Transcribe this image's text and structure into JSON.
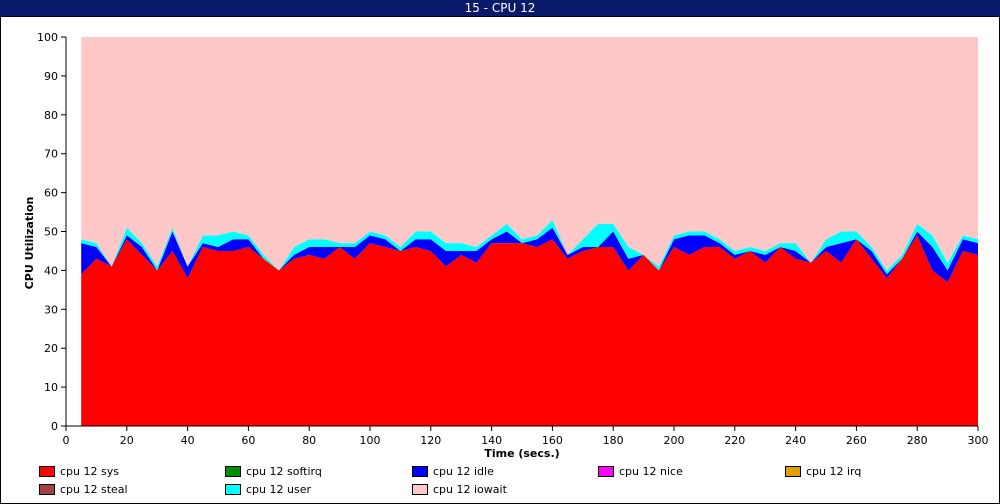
{
  "window": {
    "title": "15 - CPU 12"
  },
  "chart_data": {
    "type": "area",
    "stacked": true,
    "xlabel": "Time (secs.)",
    "ylabel": "CPU Utilization",
    "xlim": [
      0,
      300
    ],
    "ylim": [
      0,
      100
    ],
    "x_ticks": [
      0,
      20,
      40,
      60,
      80,
      100,
      120,
      140,
      160,
      180,
      200,
      220,
      240,
      260,
      280,
      300
    ],
    "y_ticks": [
      0,
      10,
      20,
      30,
      40,
      50,
      60,
      70,
      80,
      90,
      100
    ],
    "x": [
      5,
      10,
      15,
      20,
      25,
      30,
      35,
      40,
      45,
      50,
      55,
      60,
      65,
      70,
      75,
      80,
      85,
      90,
      95,
      100,
      105,
      110,
      115,
      120,
      125,
      130,
      135,
      140,
      145,
      150,
      155,
      160,
      165,
      170,
      175,
      180,
      185,
      190,
      195,
      200,
      205,
      210,
      215,
      220,
      225,
      230,
      235,
      240,
      245,
      250,
      255,
      260,
      265,
      270,
      275,
      280,
      285,
      290,
      295,
      300
    ],
    "series": [
      {
        "name": "cpu 12 sys",
        "color": "#ff0000",
        "values": [
          39,
          43,
          41,
          48,
          44,
          40,
          45,
          38,
          46,
          45,
          45,
          46,
          43,
          40,
          43,
          44,
          43,
          46,
          43,
          47,
          46,
          45,
          46,
          45,
          41,
          44,
          42,
          47,
          47,
          47,
          46,
          48,
          43,
          45,
          46,
          46,
          40,
          44,
          40,
          46,
          44,
          46,
          46,
          43,
          45,
          42,
          46,
          43,
          42,
          45,
          42,
          48,
          43,
          38,
          43,
          49,
          40,
          37,
          45,
          44
        ],
        "display": [
          null,
          null,
          null,
          null,
          null,
          null,
          null,
          null,
          null,
          null,
          null,
          null,
          null,
          null,
          null,
          null,
          null,
          null,
          null,
          null,
          null,
          null,
          null,
          null,
          null,
          null,
          null,
          null,
          null,
          null,
          null,
          null,
          null,
          null,
          null,
          null,
          null,
          null,
          null,
          null,
          null,
          null,
          null,
          null,
          null,
          null,
          null,
          null,
          null,
          null,
          null,
          null,
          null,
          null,
          null,
          null,
          null,
          null,
          null,
          null
        ]
      },
      {
        "name": "cpu 12 softirq",
        "color": "#009000",
        "values": [
          0,
          0,
          0,
          0,
          0,
          0,
          0,
          0,
          0,
          0,
          0,
          0,
          0,
          0,
          0,
          0,
          0,
          0,
          0,
          0,
          0,
          0,
          0,
          0,
          0,
          0,
          0,
          0,
          0,
          0,
          0,
          0,
          0,
          0,
          0,
          0,
          0,
          0,
          0,
          0,
          0,
          0,
          0,
          0,
          0,
          0,
          0,
          0,
          0,
          0,
          0,
          0,
          0,
          0,
          0,
          0,
          0,
          0,
          0,
          0
        ]
      },
      {
        "name": "cpu 12 idle",
        "color": "#0000ff",
        "values": [
          8,
          3,
          0,
          1,
          2,
          0,
          5,
          3,
          1,
          1,
          3,
          2,
          0,
          0,
          1,
          2,
          3,
          0,
          3,
          2,
          2,
          0,
          2,
          3,
          4,
          1,
          3,
          1,
          3,
          0,
          2,
          3,
          1,
          1,
          0,
          4,
          3,
          0,
          0,
          2,
          5,
          3,
          1,
          1,
          0,
          2,
          0,
          2,
          0,
          1,
          5,
          0,
          2,
          1,
          0,
          1,
          6,
          3,
          3,
          3
        ]
      },
      {
        "name": "cpu 12 nice",
        "color": "#ff00ff",
        "values": [
          0,
          0,
          0,
          0,
          0,
          0,
          0,
          0,
          0,
          0,
          0,
          0,
          0,
          0,
          0,
          0,
          0,
          0,
          0,
          0,
          0,
          0,
          0,
          0,
          0,
          0,
          0,
          0,
          0,
          0,
          0,
          0,
          0,
          0,
          0,
          0,
          0,
          0,
          0,
          0,
          0,
          0,
          0,
          0,
          0,
          0,
          0,
          0,
          0,
          0,
          0,
          0,
          0,
          0,
          0,
          0,
          0,
          0,
          0,
          0
        ]
      },
      {
        "name": "cpu 12 irq",
        "color": "#e0a000",
        "values": [
          0,
          0,
          0,
          0,
          0,
          0,
          0,
          0,
          0,
          0,
          0,
          0,
          0,
          0,
          0,
          0,
          0,
          0,
          0,
          0,
          0,
          0,
          0,
          0,
          0,
          0,
          0,
          0,
          0,
          0,
          0,
          0,
          0,
          0,
          0,
          0,
          0,
          0,
          0,
          0,
          0,
          0,
          0,
          0,
          0,
          0,
          0,
          0,
          0,
          0,
          0,
          0,
          0,
          0,
          0,
          0,
          0,
          0,
          0,
          0
        ]
      },
      {
        "name": "cpu 12 steal",
        "color": "#a04040",
        "values": [
          0,
          0,
          0,
          0,
          0,
          0,
          0,
          0,
          0,
          0,
          0,
          0,
          0,
          0,
          0,
          0,
          0,
          0,
          0,
          0,
          0,
          0,
          0,
          0,
          0,
          0,
          0,
          0,
          0,
          0,
          0,
          0,
          0,
          0,
          0,
          0,
          0,
          0,
          0,
          0,
          0,
          0,
          0,
          0,
          0,
          0,
          0,
          0,
          0,
          0,
          0,
          0,
          0,
          0,
          0,
          0,
          0,
          0,
          0,
          0
        ]
      },
      {
        "name": "cpu 12 user",
        "color": "#00ffff",
        "values": [
          1,
          1,
          0,
          2,
          1,
          1,
          1,
          0,
          2,
          3,
          2,
          1,
          1,
          0,
          2,
          2,
          2,
          1,
          1,
          1,
          1,
          1,
          2,
          2,
          2,
          2,
          1,
          1,
          2,
          1,
          1,
          2,
          0,
          2,
          6,
          2,
          3,
          0,
          1,
          1,
          1,
          1,
          1,
          1,
          1,
          1,
          1,
          2,
          0,
          2,
          3,
          2,
          1,
          1,
          1,
          2,
          3,
          2,
          1,
          1
        ]
      },
      {
        "name": "cpu 12 iowait",
        "color": "#ffc8c8",
        "values": [
          52,
          53,
          59,
          49,
          53,
          59,
          49,
          59,
          51,
          51,
          50,
          51,
          56,
          60,
          54,
          52,
          52,
          53,
          53,
          50,
          51,
          54,
          50,
          50,
          53,
          53,
          54,
          51,
          48,
          52,
          51,
          47,
          56,
          52,
          48,
          48,
          54,
          56,
          59,
          51,
          50,
          50,
          52,
          55,
          54,
          55,
          53,
          53,
          58,
          52,
          50,
          50,
          54,
          60,
          56,
          48,
          51,
          58,
          51,
          52
        ]
      }
    ],
    "legend": [
      "cpu 12 sys",
      "cpu 12 softirq",
      "cpu 12 idle",
      "cpu 12 nice",
      "cpu 12 irq",
      "cpu 12 steal",
      "cpu 12 user",
      "cpu 12 iowait"
    ],
    "legend_placement": "bottom",
    "grid": false
  }
}
